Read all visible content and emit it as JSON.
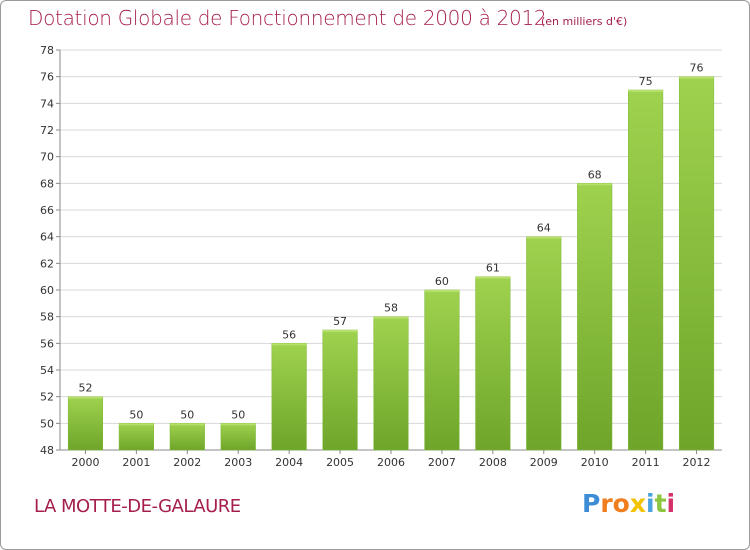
{
  "chart_data": {
    "type": "bar",
    "title": "Dotation Globale de Fonctionnement de 2000 à 2012",
    "subtitle": "(en milliers d'€)",
    "categories": [
      "2000",
      "2001",
      "2002",
      "2003",
      "2004",
      "2005",
      "2006",
      "2007",
      "2008",
      "2009",
      "2010",
      "2011",
      "2012"
    ],
    "values": [
      52,
      50,
      50,
      50,
      56,
      57,
      58,
      60,
      61,
      64,
      68,
      75,
      76
    ],
    "ylim": [
      48,
      78
    ],
    "yticks": [
      48,
      50,
      52,
      54,
      56,
      58,
      60,
      62,
      64,
      66,
      68,
      70,
      72,
      74,
      76,
      78
    ],
    "xlabel": "",
    "ylabel": "",
    "grid": "horizontal",
    "bar_color": "#8cc63f"
  },
  "commune": "LA MOTTE-DE-GALAURE",
  "logo": {
    "letters": [
      "P",
      "r",
      "o",
      "x",
      "i",
      "t",
      "i"
    ],
    "colors": [
      "#3c8dd6",
      "#f07d1e",
      "#f07d1e",
      "#f2c300",
      "#4aa3df",
      "#8cc63f",
      "#d4316a"
    ]
  }
}
